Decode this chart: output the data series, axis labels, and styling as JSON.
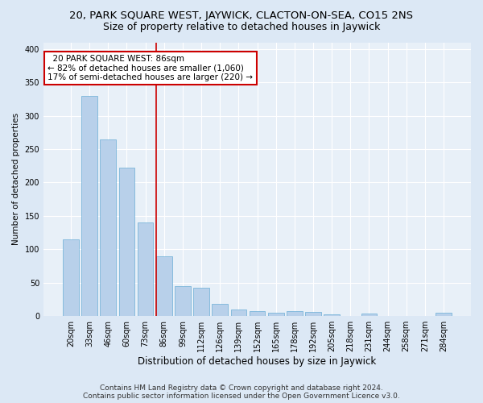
{
  "title1": "20, PARK SQUARE WEST, JAYWICK, CLACTON-ON-SEA, CO15 2NS",
  "title2": "Size of property relative to detached houses in Jaywick",
  "xlabel": "Distribution of detached houses by size in Jaywick",
  "ylabel": "Number of detached properties",
  "categories": [
    "20sqm",
    "33sqm",
    "46sqm",
    "60sqm",
    "73sqm",
    "86sqm",
    "99sqm",
    "112sqm",
    "126sqm",
    "139sqm",
    "152sqm",
    "165sqm",
    "178sqm",
    "192sqm",
    "205sqm",
    "218sqm",
    "231sqm",
    "244sqm",
    "258sqm",
    "271sqm",
    "284sqm"
  ],
  "values": [
    115,
    330,
    265,
    222,
    140,
    90,
    45,
    42,
    18,
    10,
    7,
    5,
    7,
    6,
    3,
    0,
    4,
    0,
    0,
    0,
    5
  ],
  "bar_color": "#b8d0ea",
  "bar_edge_color": "#6aaed6",
  "red_line_index": 5,
  "annotation_text": "  20 PARK SQUARE WEST: 86sqm\n← 82% of detached houses are smaller (1,060)\n17% of semi-detached houses are larger (220) →",
  "annotation_box_color": "white",
  "annotation_box_edge_color": "#cc0000",
  "red_line_color": "#cc0000",
  "ylim": [
    0,
    410
  ],
  "yticks": [
    0,
    50,
    100,
    150,
    200,
    250,
    300,
    350,
    400
  ],
  "footer1": "Contains HM Land Registry data © Crown copyright and database right 2024.",
  "footer2": "Contains public sector information licensed under the Open Government Licence v3.0.",
  "bg_color": "#dce8f5",
  "plot_bg_color": "#e8f0f8",
  "grid_color": "white",
  "title1_fontsize": 9.5,
  "title2_fontsize": 9,
  "xlabel_fontsize": 8.5,
  "ylabel_fontsize": 7.5,
  "tick_fontsize": 7,
  "annotation_fontsize": 7.5,
  "footer_fontsize": 6.5
}
